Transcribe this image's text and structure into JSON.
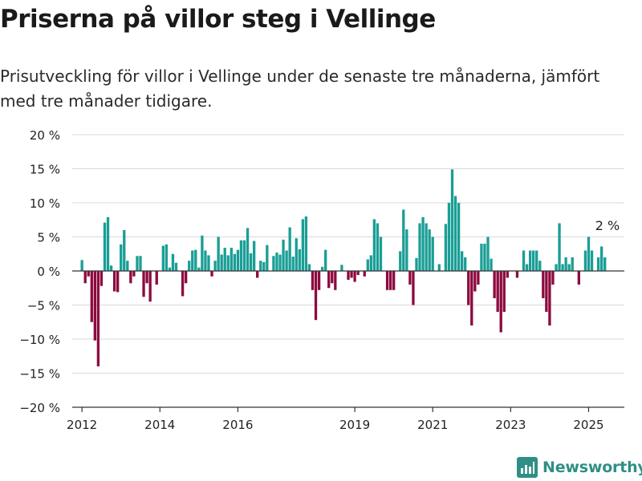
{
  "title": "Priserna på villor steg i Vellinge",
  "subtitle": "Prisutveckling för villor i Vellinge under de senaste tre månaderna, jämfört med tre månader tidigare.",
  "logo_text": "Newsworthy",
  "colors": {
    "positive": "#1a9e96",
    "negative": "#8c0a3f",
    "grid": "#d9d9d9",
    "zero": "#333333",
    "text": "#222222",
    "logo": "#2f8f86"
  },
  "chart_data": {
    "type": "bar",
    "title": "Priserna på villor steg i Vellinge",
    "subtitle": "Prisutveckling för villor i Vellinge under de senaste tre månaderna, jämfört med tre månader tidigare.",
    "x_start": "2012-01",
    "x_step": "month",
    "xlim": [
      "2011-10",
      "2025-12"
    ],
    "ylim": [
      -20,
      20
    ],
    "yticks": [
      -20,
      -15,
      -10,
      -5,
      0,
      5,
      10,
      15,
      20
    ],
    "ytick_labels": [
      "−20 %",
      "−15 %",
      "−10 %",
      "−5 %",
      "0 %",
      "5 %",
      "10 %",
      "15 %",
      "20 %"
    ],
    "xticks": [
      2012,
      2014,
      2016,
      2019,
      2021,
      2023,
      2025
    ],
    "xtick_labels": [
      "2012",
      "2014",
      "2016",
      "2019",
      "2021",
      "2023",
      "2025"
    ],
    "grid": true,
    "annotation": {
      "text": "2 %",
      "value": 2,
      "position": "last bar"
    },
    "values": [
      1.6,
      -1.8,
      -0.8,
      -7.5,
      -10.2,
      -14,
      -2.2,
      7.1,
      7.9,
      0.8,
      -3,
      -3.1,
      3.9,
      6,
      1.5,
      -1.8,
      -0.8,
      2.2,
      2.2,
      -3.8,
      -1.8,
      -4.5,
      0,
      -2,
      0,
      3.7,
      3.9,
      0.5,
      2.5,
      1.2,
      0,
      -3.7,
      -1.8,
      1.5,
      3,
      3.1,
      0.5,
      5.2,
      3,
      2.3,
      -0.8,
      1.5,
      5,
      2.4,
      3.4,
      2.3,
      3.4,
      2.5,
      3.1,
      4.5,
      4.5,
      6.3,
      2.6,
      4.4,
      -1,
      1.5,
      1.3,
      3.8,
      0,
      2.2,
      2.7,
      2.4,
      4.6,
      3,
      6.4,
      2.1,
      4.8,
      3.2,
      7.6,
      8,
      1,
      -2.8,
      -7.2,
      -2.8,
      0.6,
      3.1,
      -2.5,
      -1.8,
      -2.8,
      0,
      0.9,
      0,
      -1.3,
      -1,
      -1.6,
      -0.6,
      0,
      -0.8,
      1.7,
      2.3,
      7.6,
      7,
      5,
      0,
      -2.8,
      -2.8,
      -2.8,
      0,
      2.9,
      9,
      6.1,
      -2,
      -5,
      1.9,
      7,
      7.9,
      7,
      6.1,
      5,
      0,
      1,
      0,
      6.9,
      10,
      14.9,
      11,
      10,
      2.9,
      2,
      -5,
      -8,
      -3,
      -2,
      4,
      4,
      5,
      1.8,
      -4,
      -6,
      -9,
      -6,
      -1,
      0,
      0,
      -1,
      0,
      3,
      1,
      3,
      3,
      3,
      1.5,
      -4,
      -6,
      -8,
      -2,
      1,
      7,
      1,
      2,
      1,
      2,
      0,
      -2,
      0,
      3,
      5,
      3,
      0,
      2,
      3.6,
      2
    ]
  }
}
